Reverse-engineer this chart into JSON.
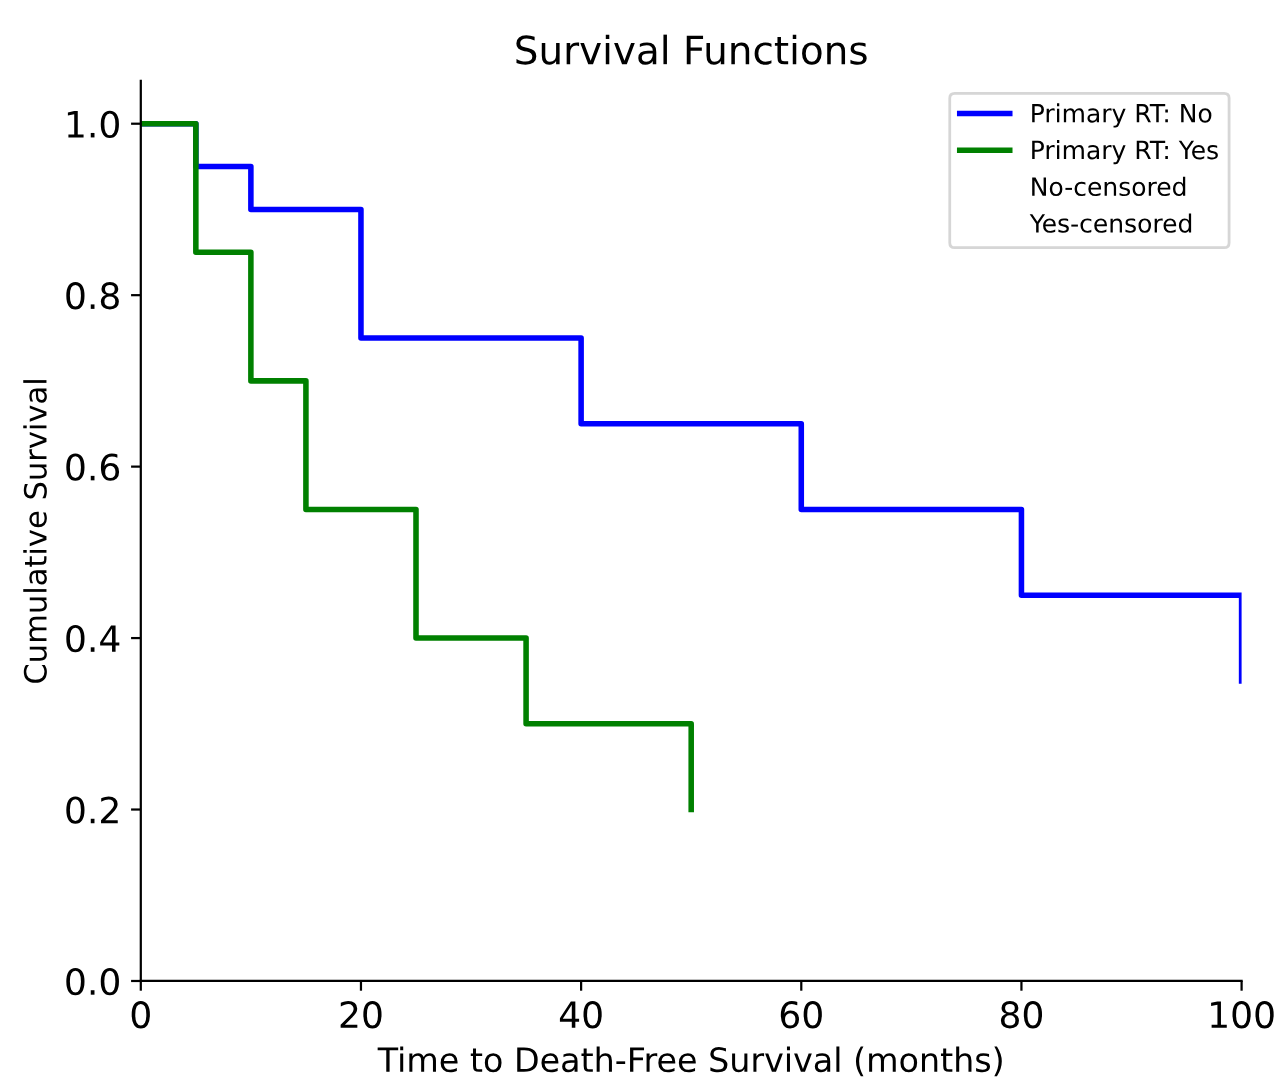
{
  "chart_data": {
    "type": "step",
    "title": "Survival Functions",
    "xlabel": "Time to Death-Free Survival (months)",
    "ylabel": "Cumulative Survival",
    "series": [
      {
        "name": "Primary RT: No",
        "color": "#0000ff",
        "x": [
          0,
          5,
          10,
          20,
          40,
          60,
          80,
          100
        ],
        "values": [
          1.0,
          0.95,
          0.9,
          0.75,
          0.65,
          0.55,
          0.45,
          0.35
        ]
      },
      {
        "name": "Primary RT: Yes",
        "color": "#008000",
        "x": [
          0,
          5,
          10,
          15,
          25,
          35,
          50
        ],
        "values": [
          1.0,
          0.85,
          0.7,
          0.55,
          0.4,
          0.3,
          0.2
        ]
      },
      {
        "name": "No-censored",
        "type": "scatter"
      },
      {
        "name": "Yes-censored",
        "type": "scatter"
      }
    ],
    "xlim": [
      0,
      100
    ],
    "ylim": [
      0,
      1.05
    ],
    "xticks": [
      0,
      20,
      40,
      60,
      80,
      100
    ],
    "yticks": [
      {
        "value": 0,
        "label": "0.0"
      },
      {
        "value": 0.2,
        "label": "0.2"
      },
      {
        "value": 0.4,
        "label": "0.4"
      },
      {
        "value": 0.6,
        "label": "0.6"
      },
      {
        "value": 0.8,
        "label": "0.8"
      },
      {
        "value": 1.0,
        "label": "1.0"
      }
    ],
    "legend": "top right"
  }
}
